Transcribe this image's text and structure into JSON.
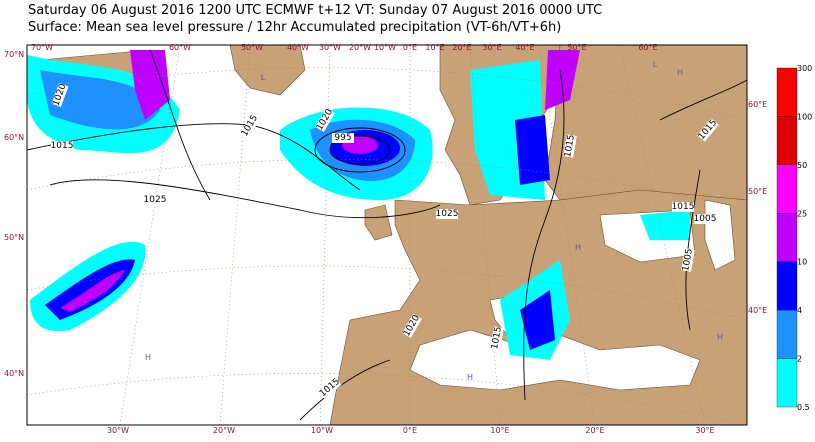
{
  "header": {
    "line1": "Saturday 06 August 2016 1200 UTC  ECMWF  t+12  VT: Sunday 07 August 2016 0000 UTC",
    "line2": "Surface: Mean sea level pressure / 12hr Accumulated precipitation (VT-6h/VT+6h)"
  },
  "map": {
    "top_labels": [
      "70°W",
      "60°W",
      "50°W",
      "40°W",
      "30°W",
      "20°W",
      "10°W",
      "0°E",
      "10°E",
      "20°E",
      "30°E",
      "40°E",
      "50°E",
      "60°E"
    ],
    "bottom_labels": [
      "30°W",
      "20°W",
      "10°W",
      "0°E",
      "10°E",
      "20°E",
      "30°E"
    ],
    "left_labels": [
      "70°N",
      "60°N",
      "50°N",
      "40°N"
    ],
    "right_labels": [
      "60°E",
      "50°E",
      "40°E"
    ],
    "isobar_labels": [
      "1020",
      "1015",
      "1015",
      "1020",
      "995",
      "1025",
      "1025",
      "1015",
      "1015",
      "1015",
      "1005",
      "1005",
      "1020",
      "1015",
      "1015"
    ],
    "pressure_centers": [
      "L",
      "H",
      "H",
      "H",
      "L",
      "H",
      "H"
    ]
  },
  "colorbar": {
    "labels": [
      "300",
      "100",
      "50",
      "25",
      "10",
      "4",
      "2",
      "0.5"
    ],
    "colors": [
      "#ff0000",
      "#dd0000",
      "#ff00ff",
      "#c000ff",
      "#0000ff",
      "#1e90ff",
      "#00ffff"
    ]
  }
}
